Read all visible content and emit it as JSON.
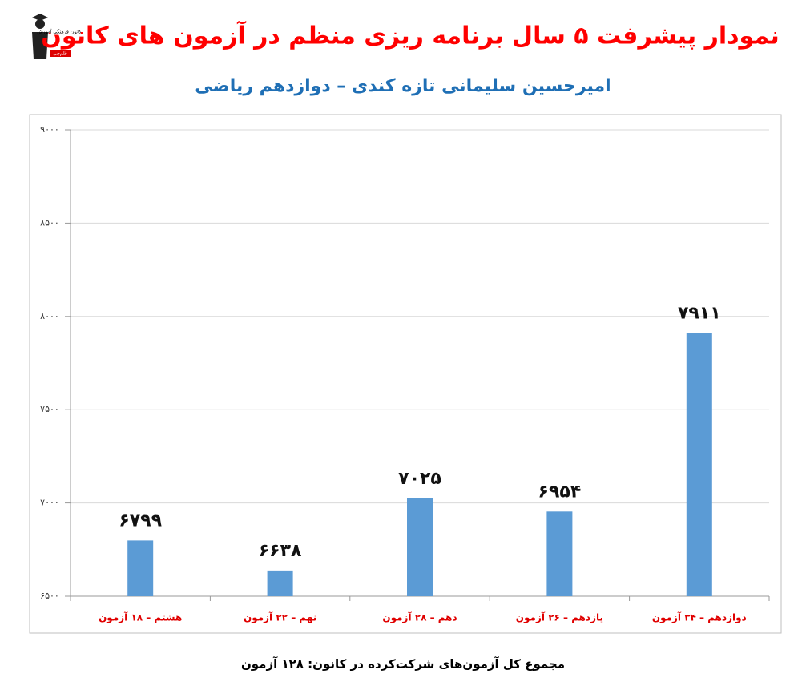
{
  "logo": {
    "text": "کانون فرهنگی آموزش",
    "sub": "قلم‌چی"
  },
  "chart_data": {
    "type": "bar",
    "title": "نمودار پیشرفت ۵ سال برنامه ریزی منظم در آزمون های کانون",
    "subtitle": "امیرحسین سلیمانی تازه کندی – دوازدهم ریاضی",
    "footer": "مجموع کل آزمون‌های شرکت‌کرده در کانون: ۱۲۸ آزمون",
    "categories": [
      "هشتم – ۱۸ آزمون",
      "نهم – ۲۲ آزمون",
      "دهم – ۲۸ آزمون",
      "یازدهم – ۲۶ آزمون",
      "دوازدهم – ۳۴ آزمون"
    ],
    "values": [
      6799,
      6638,
      7025,
      6954,
      7911
    ],
    "value_labels": [
      "۶۷۹۹",
      "۶۶۳۸",
      "۷۰۲۵",
      "۶۹۵۴",
      "۷۹۱۱"
    ],
    "color": "#5b9bd5",
    "ylim": [
      6500,
      9000
    ],
    "yticks": [
      {
        "value": 6500,
        "label": "۶۵۰۰"
      },
      {
        "value": 7000,
        "label": "۷۰۰۰"
      },
      {
        "value": 7500,
        "label": "۷۵۰۰"
      },
      {
        "value": 8000,
        "label": "۸۰۰۰"
      },
      {
        "value": 8500,
        "label": "۸۵۰۰"
      },
      {
        "value": 9000,
        "label": "۹۰۰۰"
      }
    ],
    "grid": true
  }
}
